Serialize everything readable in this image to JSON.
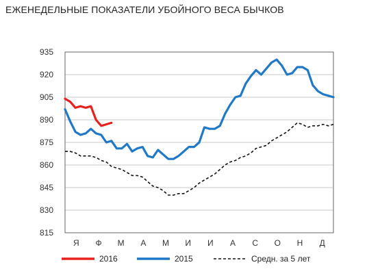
{
  "chart_data": {
    "type": "line",
    "title": "ЕЖЕНЕДЕЛЬНЫЕ ПОКАЗАТЕЛИ УБОЙНОГО ВЕСА БЫЧКОВ",
    "ylim": [
      815,
      935
    ],
    "yticks": [
      815,
      830,
      845,
      860,
      875,
      890,
      905,
      920,
      935
    ],
    "xlim": [
      1,
      53
    ],
    "month_labels": [
      "Я",
      "Ф",
      "М",
      "А",
      "М",
      "И",
      "И",
      "А",
      "С",
      "О",
      "Н",
      "Д"
    ],
    "grid": true,
    "legend_position": "bottom",
    "series": [
      {
        "name": "2016",
        "color": "#e8211d",
        "style": "solid",
        "x": [
          1,
          2,
          3,
          4,
          5,
          6,
          7,
          8,
          9,
          10
        ],
        "values": [
          904,
          902,
          898,
          899,
          898,
          899,
          890,
          886,
          887,
          888
        ]
      },
      {
        "name": "2015",
        "color": "#1f78c8",
        "style": "solid",
        "x": [
          1,
          2,
          3,
          4,
          5,
          6,
          7,
          8,
          9,
          10,
          11,
          12,
          13,
          14,
          15,
          16,
          17,
          18,
          19,
          20,
          21,
          22,
          23,
          24,
          25,
          26,
          27,
          28,
          29,
          30,
          31,
          32,
          33,
          34,
          35,
          36,
          37,
          38,
          39,
          40,
          41,
          42,
          43,
          44,
          45,
          46,
          47,
          48,
          49,
          50,
          51,
          52,
          53
        ],
        "values": [
          897,
          889,
          882,
          880,
          881,
          884,
          881,
          880,
          875,
          876,
          871,
          871,
          874,
          869,
          871,
          872,
          866,
          865,
          870,
          867,
          864,
          864,
          866,
          869,
          872,
          872,
          875,
          885,
          884,
          884,
          886,
          894,
          900,
          905,
          906,
          914,
          919,
          923,
          920,
          924,
          928,
          930,
          926,
          920,
          921,
          925,
          925,
          923,
          913,
          909,
          907,
          906,
          905
        ]
      },
      {
        "name": "Средн. за 5 лет",
        "color": "#111111",
        "style": "dashed",
        "x": [
          1,
          2,
          3,
          4,
          5,
          6,
          7,
          8,
          9,
          10,
          11,
          12,
          13,
          14,
          15,
          16,
          17,
          18,
          19,
          20,
          21,
          22,
          23,
          24,
          25,
          26,
          27,
          28,
          29,
          30,
          31,
          32,
          33,
          34,
          35,
          36,
          37,
          38,
          39,
          40,
          41,
          42,
          43,
          44,
          45,
          46,
          47,
          48,
          49,
          50,
          51,
          52,
          53
        ],
        "values": [
          869,
          869,
          868,
          866,
          866,
          866,
          865,
          863,
          862,
          859,
          858,
          857,
          855,
          853,
          853,
          852,
          849,
          846,
          845,
          843,
          840,
          840,
          841,
          841,
          843,
          845,
          848,
          850,
          852,
          854,
          857,
          860,
          862,
          863,
          865,
          866,
          868,
          871,
          872,
          873,
          876,
          878,
          880,
          882,
          885,
          888,
          887,
          885,
          886,
          886,
          887,
          886,
          887
        ]
      }
    ]
  }
}
